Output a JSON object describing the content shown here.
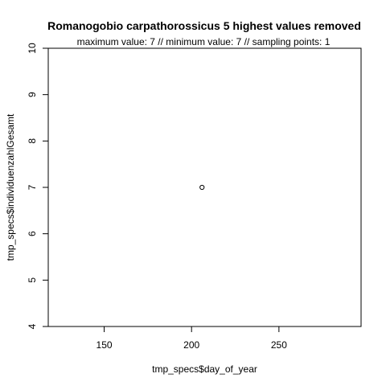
{
  "chart_data": {
    "type": "scatter",
    "title": "Romanogobio carpathorossicus  5 highest values removed",
    "subtitle": "maximum value: 7  //  minimum value: 7  // sampling points: 1",
    "xlabel": "tmp_specs$day_of_year",
    "ylabel": "tmp_specs$individuenzahlGesamt",
    "xlim": [
      118,
      297
    ],
    "ylim": [
      4,
      10
    ],
    "x_ticks": [
      150,
      200,
      250
    ],
    "x_tick_labels": [
      "150",
      "200",
      "250"
    ],
    "y_ticks": [
      4,
      5,
      6,
      7,
      8,
      9,
      10
    ],
    "y_tick_labels": [
      "4",
      "5",
      "6",
      "7",
      "8",
      "9",
      "10"
    ],
    "points": [
      {
        "x": 206,
        "y": 7
      }
    ]
  },
  "colors": {
    "point_stroke": "#000000",
    "axis": "#000000"
  }
}
